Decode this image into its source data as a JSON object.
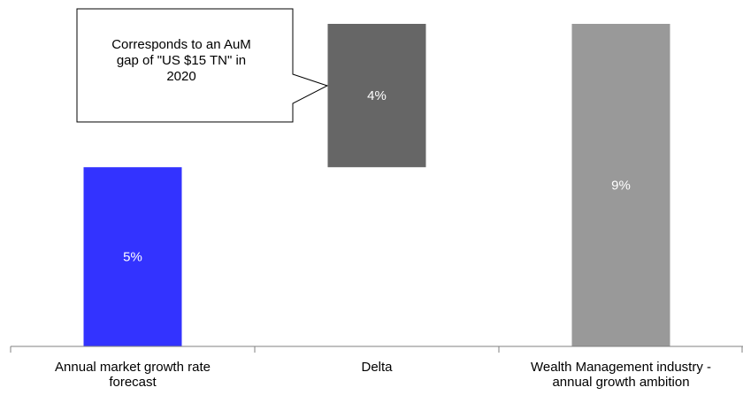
{
  "chart_data": {
    "type": "bar",
    "subtype": "waterfall",
    "categories": [
      [
        "Annual market growth rate",
        "forecast"
      ],
      [
        "Delta"
      ],
      [
        "Wealth Management industry -",
        "annual growth ambition"
      ]
    ],
    "segments": [
      {
        "category_index": 0,
        "base": 0,
        "value": 5,
        "label": "5%",
        "color": "#3333ff"
      },
      {
        "category_index": 1,
        "base": 5,
        "value": 4,
        "label": "4%",
        "color": "#666666"
      },
      {
        "category_index": 2,
        "base": 0,
        "value": 9,
        "label": "9%",
        "color": "#999999"
      }
    ],
    "ylim": [
      0,
      9
    ],
    "grid": false,
    "annotation": {
      "lines": [
        "Corresponds to an AuM",
        "gap of \"US $15 TN\" in",
        "2020"
      ],
      "points_to_category": 1
    }
  }
}
